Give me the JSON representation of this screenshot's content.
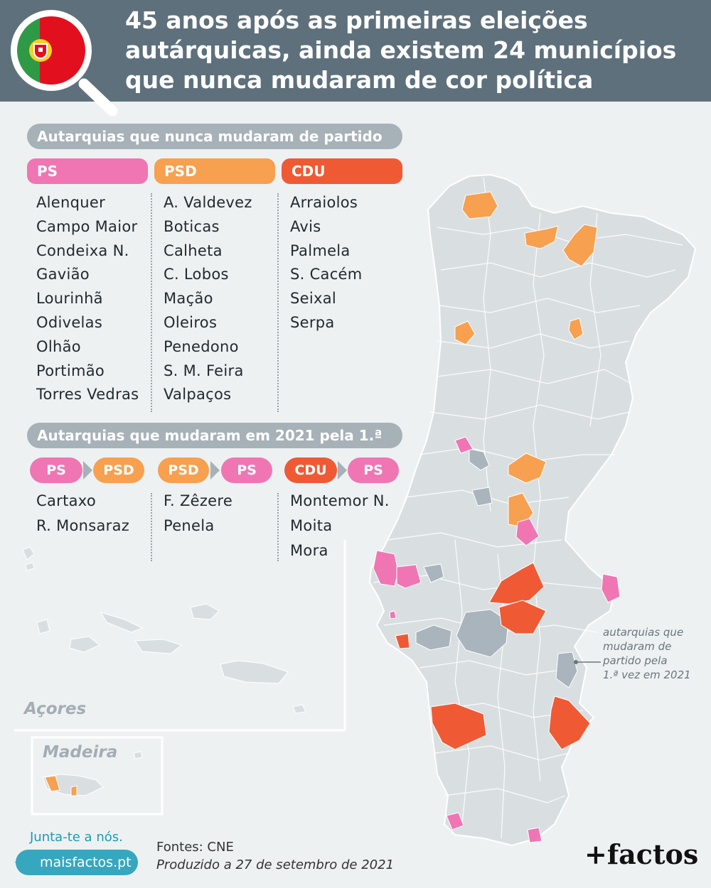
{
  "header": {
    "title_lines": [
      "45 anos após as primeiras eleições",
      "autárquicas, ainda existem 24 municípios",
      "que nunca mudaram de cor política"
    ]
  },
  "section1": {
    "title": "Autarquias que nunca mudaram de partido",
    "columns": [
      {
        "party": "PS",
        "items": [
          "Alenquer",
          "Campo Maior",
          "Condeixa N.",
          "Gavião",
          "Lourinhã",
          "Odivelas",
          "Olhão",
          "Portimão",
          "Torres Vedras"
        ]
      },
      {
        "party": "PSD",
        "items": [
          "A. Valdevez",
          "Boticas",
          "Calheta",
          "C. Lobos",
          "Mação",
          "Oleiros",
          "Penedono",
          "S. M. Feira",
          "Valpaços"
        ]
      },
      {
        "party": "CDU",
        "items": [
          "Arraiolos",
          "Avis",
          "Palmela",
          "S. Cacém",
          "Seixal",
          "Serpa"
        ]
      }
    ]
  },
  "section2": {
    "title": "Autarquias que mudaram em 2021 pela 1.ª vez",
    "columns": [
      {
        "from": "PS",
        "to": "PSD",
        "items": [
          "Cartaxo",
          "R. Monsaraz"
        ]
      },
      {
        "from": "PSD",
        "to": "PS",
        "items": [
          "F. Zêzere",
          "Penela"
        ]
      },
      {
        "from": "CDU",
        "to": "PS",
        "items": [
          "Montemor N.",
          "Moita",
          "Mora"
        ]
      }
    ]
  },
  "map": {
    "acores_label": "Açores",
    "madeira_label": "Madeira",
    "annotation_lines": [
      "autarquias que",
      "mudaram de",
      "partido pela",
      "1.ª vez em 2021"
    ]
  },
  "colors": {
    "PS": "#ef76b3",
    "PSD": "#f7a04f",
    "CDU": "#ef5a35",
    "changed": "#a9b4bd",
    "base": "#d9dfe1",
    "header": "#5e707c"
  },
  "footer": {
    "join": "Junta-te a nós.",
    "site": "maisfactos.pt",
    "sources": "Fontes: CNE",
    "produced": "Produzido a 27 de setembro de 2021",
    "logo": "+factos"
  }
}
